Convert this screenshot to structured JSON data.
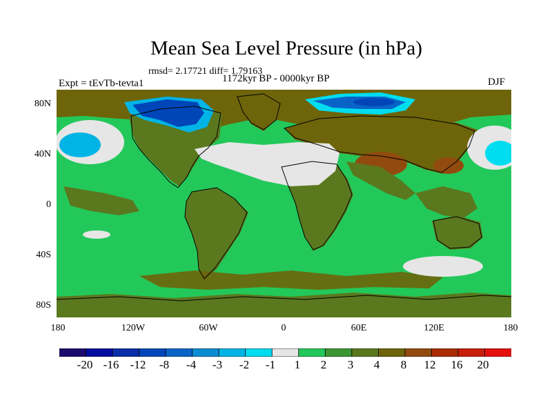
{
  "title": "Mean Sea Level Pressure (in hPa)",
  "stats": "rmsd= 2.17721 diff= 1.79163",
  "experiment": "Expt = tEvTb-tevta1",
  "period": "1172kyr BP - 0000kyr BP",
  "season": "DJF",
  "lat_labels": [
    "80N",
    "40N",
    "0",
    "40S",
    "80S"
  ],
  "lon_labels": [
    "180",
    "120W",
    "60W",
    "0",
    "60E",
    "120E",
    "180"
  ],
  "colorbar": {
    "labels": [
      "-20",
      "-16",
      "-12",
      "-8",
      "-4",
      "-3",
      "-2",
      "-1",
      "1",
      "2",
      "3",
      "4",
      "8",
      "12",
      "16",
      "20"
    ],
    "colors": [
      "#1c0a6e",
      "#000da0",
      "#0a2ea8",
      "#0046b9",
      "#0a64c8",
      "#0a8cd2",
      "#00b4e6",
      "#00dcf0",
      "#e6e6e6",
      "#23c85a",
      "#3c9632",
      "#5a781e",
      "#6e640a",
      "#914b0f",
      "#aa2d05",
      "#c81e0a",
      "#e60f0f"
    ]
  },
  "map_colors": {
    "ocean": "#23c85a",
    "land": "#5a781e",
    "brown": "#6e640a",
    "rust": "#914b0f",
    "neutral": "#e6e6e6",
    "light_blue": "#00b4e6",
    "cyan": "#00dcf0",
    "blue": "#0a64c8",
    "dark_blue": "#0046b9"
  }
}
